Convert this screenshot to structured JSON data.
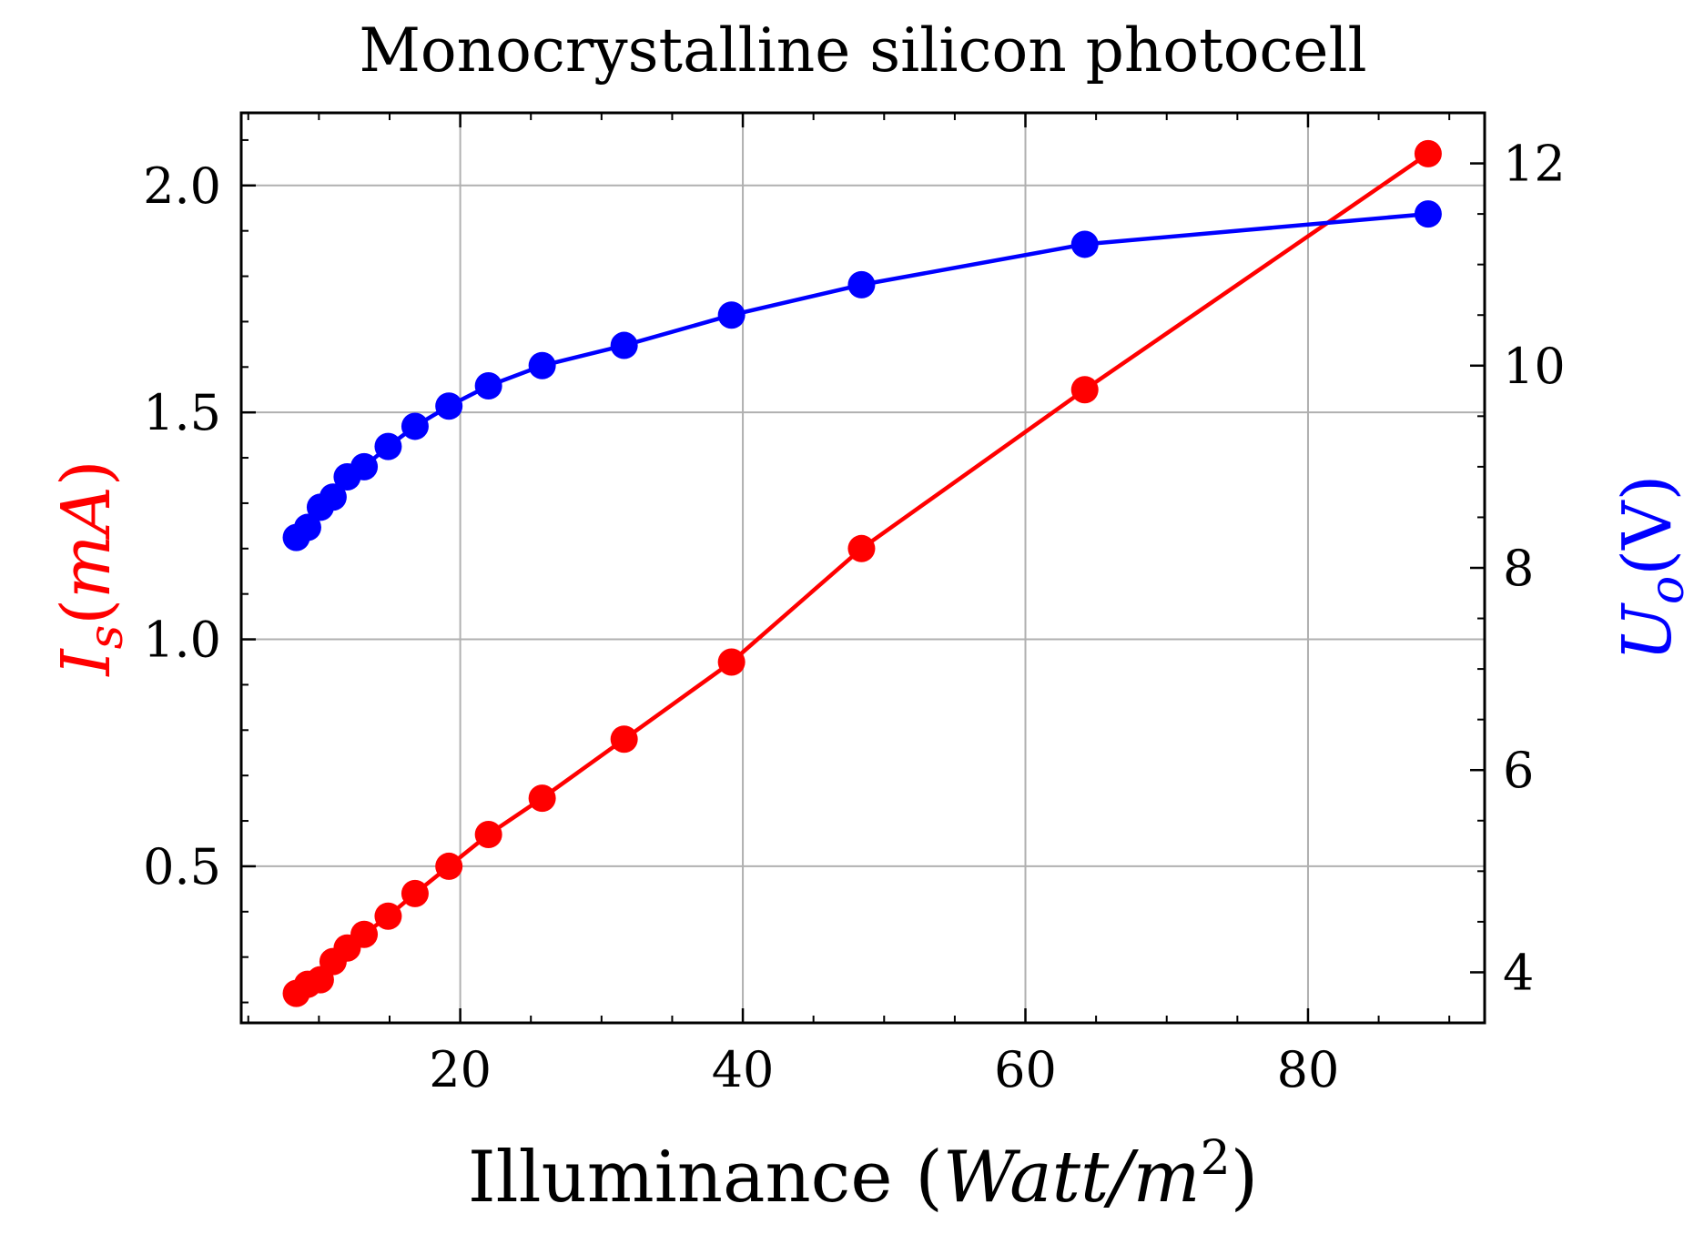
{
  "chart_data": {
    "type": "line",
    "title": "Monocrystalline silicon photocell",
    "xlabel": {
      "text": "Illuminance",
      "unit": "Watt/m",
      "superscript": "2"
    },
    "ylabel_left": {
      "symbol": "I",
      "subscript": "s",
      "unit": "mA",
      "color": "#ff0000"
    },
    "ylabel_right": {
      "symbol": "U",
      "subscript": "o",
      "unit": "V",
      "color": "#0000ff"
    },
    "xlim": [
      4.5,
      92.5
    ],
    "ylim_left": [
      0.155,
      2.16
    ],
    "ylim_right": [
      3.5,
      12.5
    ],
    "xticks": [
      "20",
      "40",
      "60",
      "80"
    ],
    "yticks_left": [
      "0.5",
      "1.0",
      "1.5",
      "2.0"
    ],
    "yticks_right": [
      "4",
      "6",
      "8",
      "10",
      "12"
    ],
    "grid": true,
    "series": [
      {
        "axis": "left",
        "color": "#ff0000",
        "x": [
          8.4,
          9.2,
          10.1,
          11.0,
          12.0,
          13.2,
          14.9,
          16.8,
          19.2,
          22.0,
          25.8,
          31.6,
          39.2,
          48.4,
          64.2,
          88.5
        ],
        "y": [
          0.22,
          0.24,
          0.25,
          0.29,
          0.32,
          0.35,
          0.39,
          0.44,
          0.5,
          0.57,
          0.65,
          0.78,
          0.95,
          1.2,
          1.55,
          2.07
        ]
      },
      {
        "axis": "right",
        "color": "#0000ff",
        "x": [
          8.4,
          9.2,
          10.1,
          11.0,
          12.0,
          13.2,
          14.9,
          16.8,
          19.2,
          22.0,
          25.8,
          31.6,
          39.2,
          48.4,
          64.2,
          88.5
        ],
        "y": [
          8.3,
          8.4,
          8.6,
          8.7,
          8.9,
          9.0,
          9.2,
          9.4,
          9.6,
          9.8,
          10.0,
          10.2,
          10.5,
          10.8,
          11.2,
          11.5
        ]
      }
    ]
  }
}
